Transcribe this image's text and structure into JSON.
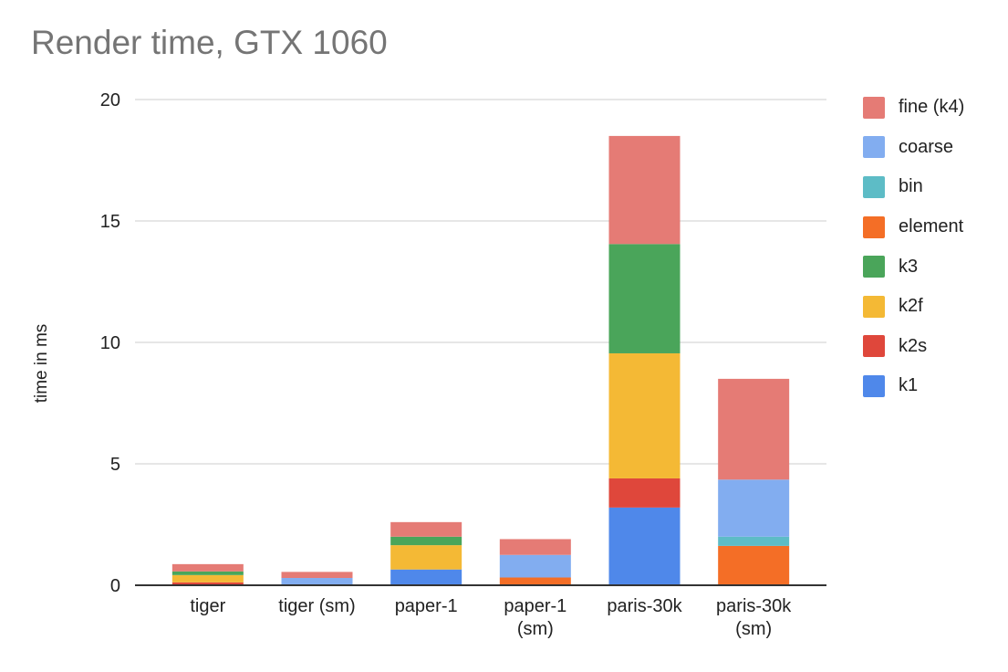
{
  "chart_data": {
    "type": "bar",
    "stacked": true,
    "title": "Render time, GTX 1060",
    "xlabel": "",
    "ylabel": "time in ms",
    "ylim": [
      0,
      20
    ],
    "yticks": [
      0,
      5,
      10,
      15,
      20
    ],
    "grid": true,
    "legend_position": "right",
    "categories": [
      [
        "tiger"
      ],
      [
        "tiger (sm)"
      ],
      [
        "paper-1"
      ],
      [
        "paper-1",
        "(sm)"
      ],
      [
        "paris-30k"
      ],
      [
        "paris-30k",
        "(sm)"
      ]
    ],
    "series": [
      {
        "name": "k1",
        "color": "#4f88ea",
        "values": [
          0.0,
          0.0,
          0.65,
          0.0,
          3.2,
          0.0
        ]
      },
      {
        "name": "k2s",
        "color": "#df473b",
        "values": [
          0.12,
          0.0,
          0.0,
          0.0,
          1.2,
          0.0
        ]
      },
      {
        "name": "k2f",
        "color": "#f4b935",
        "values": [
          0.3,
          0.0,
          1.0,
          0.0,
          5.15,
          0.0
        ]
      },
      {
        "name": "k3",
        "color": "#4aa55a",
        "values": [
          0.15,
          0.0,
          0.35,
          0.0,
          4.5,
          0.0
        ]
      },
      {
        "name": "element",
        "color": "#f46e26",
        "values": [
          0.0,
          0.0,
          0.0,
          0.32,
          0.0,
          1.62
        ]
      },
      {
        "name": "bin",
        "color": "#5dbcc6",
        "values": [
          0.0,
          0.0,
          0.0,
          0.0,
          0.0,
          0.38
        ]
      },
      {
        "name": "coarse",
        "color": "#82adf0",
        "values": [
          0.0,
          0.3,
          0.0,
          0.93,
          0.0,
          2.35
        ]
      },
      {
        "name": "fine (k4)",
        "color": "#e57b75",
        "values": [
          0.3,
          0.25,
          0.6,
          0.65,
          4.45,
          4.15
        ]
      }
    ],
    "legend_order": [
      "fine (k4)",
      "coarse",
      "bin",
      "element",
      "k3",
      "k2f",
      "k2s",
      "k1"
    ]
  }
}
